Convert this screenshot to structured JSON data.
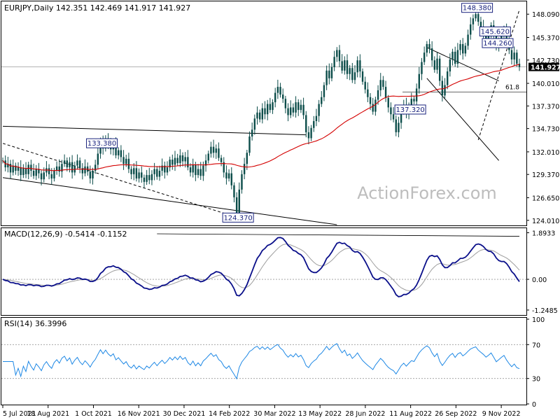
{
  "chart_data": [
    {
      "type": "candlestick",
      "panel": "price",
      "header": "EURJPY,Daily  142.351 142.469 141.917 141.927",
      "watermark": "ActionForex.com",
      "ylim": [
        123.5,
        149.5
      ],
      "y_ticks": [
        148.09,
        145.37,
        142.73,
        140.01,
        137.37,
        134.73,
        132.01,
        129.37,
        126.65,
        124.01
      ],
      "y_tick_labels": [
        "148.090",
        "145.370",
        "142.730",
        "140.010",
        "137.370",
        "134.730",
        "132.010",
        "129.370",
        "126.650",
        "124.010"
      ],
      "last_price": 141.927,
      "last_price_label": "141.927",
      "x_labels": [
        "5 Jul 2021",
        "18 Aug 2021",
        "1 Oct 2021",
        "16 Nov 2021",
        "30 Dec 2021",
        "14 Feb 2022",
        "30 Mar 2022",
        "13 May 2022",
        "28 Jun 2022",
        "11 Aug 2022",
        "26 Sep 2022",
        "9 Nov 2022"
      ],
      "closes": [
        131.0,
        130.2,
        130.6,
        129.6,
        130.4,
        129.8,
        130.2,
        129.3,
        130.1,
        129.4,
        130.5,
        129.8,
        129.2,
        130.0,
        129.5,
        128.8,
        129.6,
        130.1,
        129.4,
        128.9,
        129.8,
        130.3,
        129.7,
        130.6,
        131.0,
        130.2,
        130.8,
        129.6,
        130.4,
        131.0,
        130.1,
        129.5,
        130.3,
        129.7,
        128.9,
        129.8,
        130.5,
        131.8,
        133.2,
        132.4,
        133.6,
        132.8,
        132.3,
        133.0,
        131.6,
        132.2,
        131.4,
        130.6,
        131.2,
        130.0,
        129.4,
        130.1,
        128.9,
        129.6,
        129.0,
        128.5,
        129.3,
        128.7,
        129.4,
        130.0,
        129.1,
        129.8,
        130.4,
        129.6,
        130.2,
        131.1,
        130.5,
        131.3,
        130.7,
        131.6,
        130.9,
        131.4,
        130.2,
        129.6,
        130.5,
        129.3,
        130.0,
        129.2,
        130.4,
        131.0,
        131.8,
        132.6,
        131.9,
        132.4,
        131.3,
        130.8,
        129.6,
        128.9,
        129.5,
        128.1,
        126.7,
        124.7,
        127.6,
        129.4,
        130.6,
        131.9,
        133.8,
        134.6,
        135.9,
        136.6,
        135.8,
        137.1,
        136.4,
        137.6,
        136.9,
        137.8,
        138.9,
        139.6,
        138.7,
        138.2,
        137.1,
        136.3,
        137.2,
        136.6,
        137.8,
        136.9,
        137.5,
        136.3,
        134.3,
        133.6,
        134.8,
        135.6,
        136.2,
        137.6,
        138.4,
        139.8,
        141.5,
        140.6,
        141.9,
        143.1,
        143.9,
        142.6,
        141.5,
        142.7,
        141.1,
        141.8,
        140.4,
        141.3,
        142.7,
        141.4,
        140.2,
        139.3,
        138.4,
        137.6,
        136.7,
        138.1,
        139.2,
        140.4,
        139.6,
        138.3,
        137.2,
        136.4,
        135.8,
        134.3,
        135.4,
        136.7,
        137.5,
        136.4,
        137.3,
        138.2,
        137.9,
        139.4,
        141.1,
        142.5,
        143.6,
        144.6,
        144.1,
        142.7,
        141.6,
        142.9,
        140.3,
        138.6,
        139.8,
        141.4,
        142.8,
        143.7,
        142.3,
        143.9,
        144.6,
        143.5,
        144.4,
        145.7,
        146.9,
        147.6,
        148.1,
        147.2,
        146.6,
        146.0,
        145.2,
        145.9,
        146.8,
        145.6,
        144.2,
        144.9,
        145.7,
        146.4,
        145.1,
        143.9,
        142.8,
        143.6,
        142.3,
        141.927
      ],
      "ma_period": 55,
      "levels": [
        {
          "label": "148.380",
          "value": 148.38
        },
        {
          "label": "145.620",
          "value": 145.62
        },
        {
          "label": "144.260",
          "value": 144.26
        },
        {
          "label": "137.320",
          "value": 137.32
        },
        {
          "label": "133.380",
          "value": 133.38
        },
        {
          "label": "124.370",
          "value": 124.37
        }
      ],
      "fib_label": "61.8",
      "fib_value": 139.0
    },
    {
      "type": "line",
      "panel": "macd",
      "header": "MACD(12,26,9) -0.5414 -0.1152",
      "ylim": [
        -1.45,
        2.05
      ],
      "y_tick_labels": [
        "1.8933",
        "0.00",
        "-1.2485"
      ],
      "y_ticks": [
        1.8933,
        0.0,
        -1.2485
      ],
      "last_value_label": "0.00"
    },
    {
      "type": "line",
      "panel": "rsi",
      "header": "RSI(14) 36.3996",
      "ylim": [
        0,
        100
      ],
      "y_ticks": [
        100,
        70,
        30,
        0
      ],
      "y_tick_labels": [
        "100",
        "70",
        "30",
        "0"
      ]
    }
  ]
}
